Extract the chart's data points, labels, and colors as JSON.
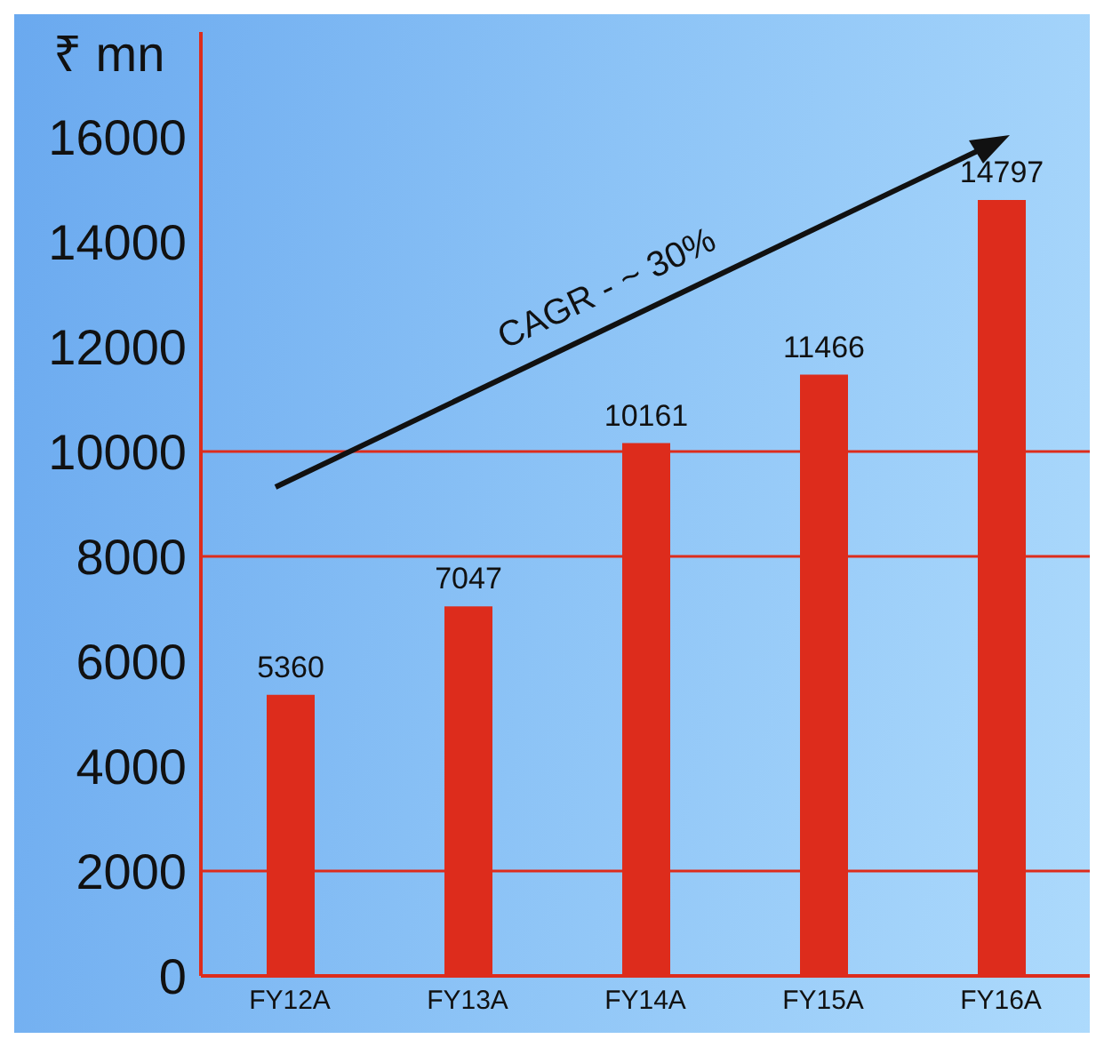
{
  "chart_data": {
    "type": "bar",
    "ylabel": "₹ mn",
    "categories": [
      "FY12A",
      "FY13A",
      "FY14A",
      "FY15A",
      "FY16A"
    ],
    "values": [
      5360,
      7047,
      10161,
      11466,
      14797
    ],
    "color": "#dd2c1c",
    "data_labels": true,
    "ylim": [
      0,
      18000
    ],
    "yticks": [
      0,
      2000,
      4000,
      6000,
      8000,
      10000,
      12000,
      14000,
      16000
    ],
    "ref_lines": [
      {
        "axis": "y",
        "value": 2000,
        "color": "#dd2c1c"
      },
      {
        "axis": "y",
        "value": 8000,
        "color": "#dd2c1c"
      },
      {
        "axis": "y",
        "value": 10000,
        "color": "#dd2c1c"
      }
    ],
    "annotations": [
      "CAGR - ~ 30%"
    ]
  }
}
